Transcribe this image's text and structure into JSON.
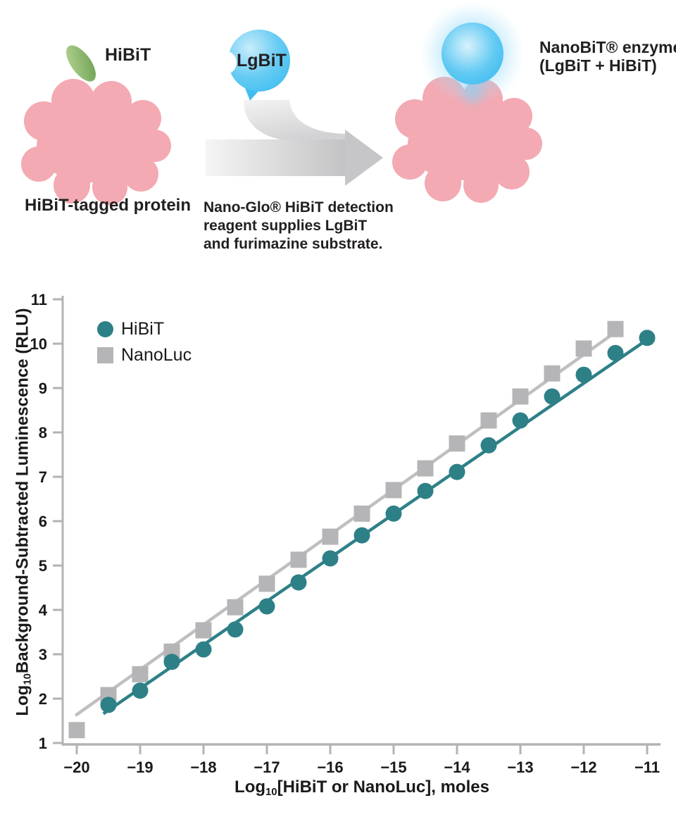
{
  "diagram": {
    "hibit_tag_label": "HiBiT",
    "lgbit_label": "LgBiT",
    "left_caption": "HiBiT-tagged protein",
    "mid_caption": [
      "Nano-Glo® HiBiT detection",
      "reagent supplies LgBiT",
      "and furimazine substrate."
    ],
    "right_label": [
      "NanoBiT® enzyme",
      "(LgBiT + HiBiT)"
    ],
    "colors": {
      "protein_pink": "#F3AAB3",
      "tag_green": "#79A457",
      "lgbit_blue": "#44C0F1",
      "arrow_gray": "#D6D6D8"
    }
  },
  "chart_data": {
    "type": "scatter",
    "title": "",
    "xlabel": {
      "prefix": "Log",
      "sub": "10",
      "rest": "[HiBiT or NanoLuc], moles"
    },
    "ylabel": {
      "prefix": "Log",
      "sub": "10",
      "rest": "Background-Subtracted Luminescence (RLU)"
    },
    "xlim": [
      -20.25,
      -10.8
    ],
    "ylim": [
      0.85,
      11.15
    ],
    "grid": false,
    "legend_position": "top-left",
    "x_ticks": [
      {
        "value": -20,
        "label": "−20"
      },
      {
        "value": -19,
        "label": "−19"
      },
      {
        "value": -18,
        "label": "−18"
      },
      {
        "value": -17,
        "label": "−17"
      },
      {
        "value": -16,
        "label": "−16"
      },
      {
        "value": -15,
        "label": "−15"
      },
      {
        "value": -14,
        "label": "−14"
      },
      {
        "value": -13,
        "label": "−13"
      },
      {
        "value": -12,
        "label": "−12"
      },
      {
        "value": -11,
        "label": "−11"
      }
    ],
    "y_ticks": [
      {
        "value": 1,
        "label": "1"
      },
      {
        "value": 2,
        "label": "2"
      },
      {
        "value": 3,
        "label": "3"
      },
      {
        "value": 4,
        "label": "4"
      },
      {
        "value": 5,
        "label": "5"
      },
      {
        "value": 6,
        "label": "6"
      },
      {
        "value": 7,
        "label": "7"
      },
      {
        "value": 8,
        "label": "8"
      },
      {
        "value": 9,
        "label": "9"
      },
      {
        "value": 10,
        "label": "10"
      },
      {
        "value": 11,
        "label": "11"
      }
    ],
    "series": [
      {
        "name": "HiBiT",
        "marker": "circle",
        "color": "#2E8087",
        "line_color": "#2E8087",
        "x": [
          -19.5,
          -19,
          -18.5,
          -18,
          -17.5,
          -17,
          -16.5,
          -16,
          -15.5,
          -15,
          -14.5,
          -14,
          -13.5,
          -13,
          -12.5,
          -12,
          -11.5,
          -11
        ],
        "y": [
          1.86,
          2.18,
          2.83,
          3.11,
          3.56,
          4.08,
          4.62,
          5.16,
          5.68,
          6.17,
          6.68,
          7.11,
          7.71,
          8.27,
          8.81,
          9.3,
          9.79,
          10.13
        ],
        "fit_line": {
          "x1": -19.58,
          "y1": 1.66,
          "x2": -10.95,
          "y2": 10.14
        }
      },
      {
        "name": "NanoLuc",
        "marker": "square",
        "color": "#B5B5B7",
        "line_color": "#BFBFC1",
        "x": [
          -20,
          -19.5,
          -19,
          -18.5,
          -18,
          -17.5,
          -17,
          -16.5,
          -16,
          -15.5,
          -15,
          -14.5,
          -14,
          -13.5,
          -13,
          -12.5,
          -12,
          -11.5
        ],
        "y": [
          1.29,
          2.08,
          2.55,
          3.06,
          3.54,
          4.06,
          4.59,
          5.13,
          5.65,
          6.17,
          6.7,
          7.19,
          7.75,
          8.27,
          8.81,
          9.33,
          9.89,
          10.33
        ],
        "fit_line": {
          "x1": -20.02,
          "y1": 1.62,
          "x2": -11.42,
          "y2": 10.34
        }
      }
    ]
  }
}
